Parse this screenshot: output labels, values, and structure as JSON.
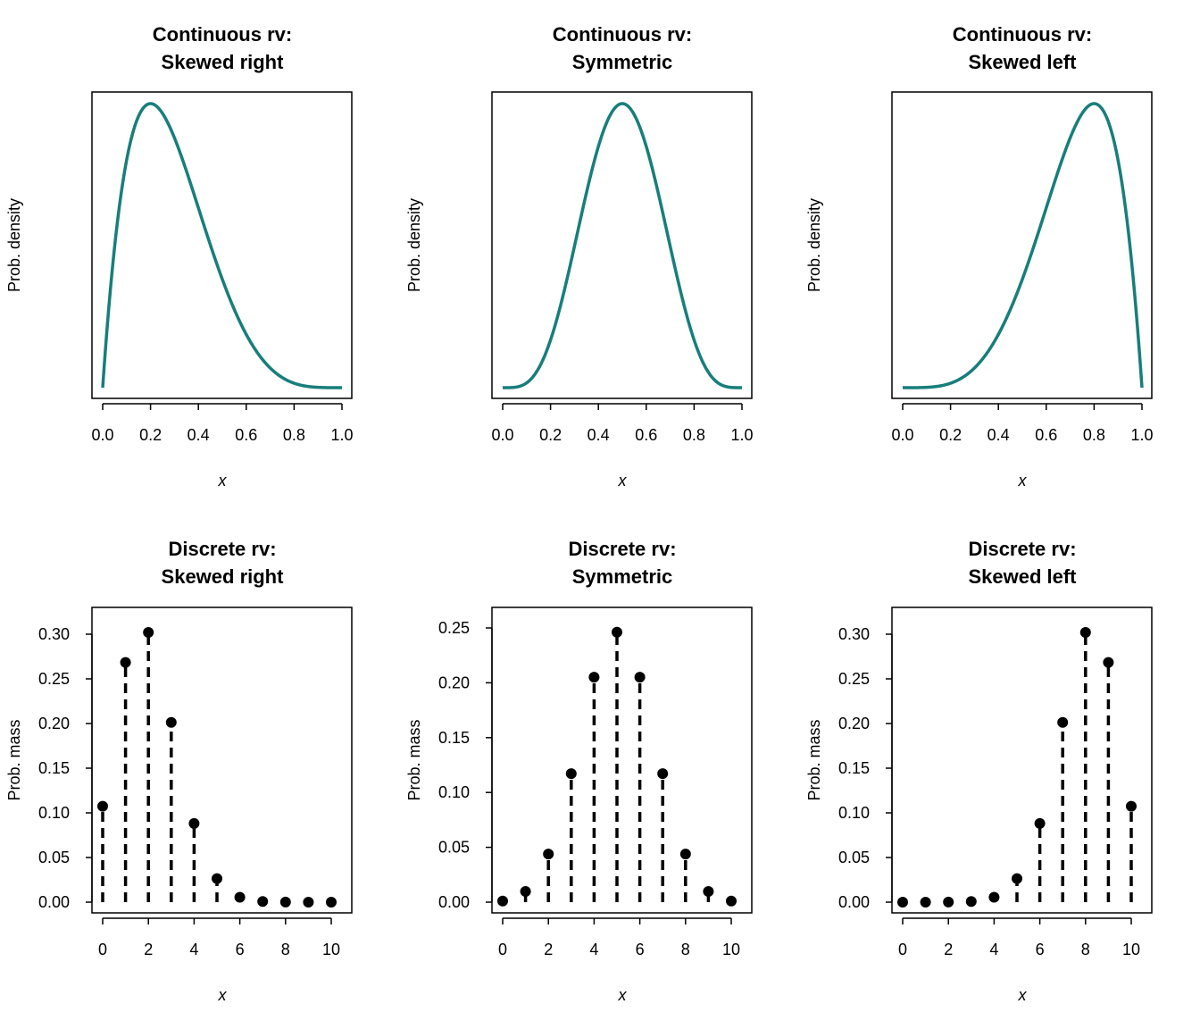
{
  "chart_data": {
    "type": "multi-panel",
    "layout": "2 rows x 3 columns",
    "curve_color": "#177e7b",
    "panels": [
      {
        "type": "line",
        "title": [
          "Continuous rv:",
          "Skewed right"
        ],
        "xlabel": "x",
        "ylabel": "Prob. density",
        "xlim": [
          0,
          1
        ],
        "xticks": [
          "0.0",
          "0.2",
          "0.4",
          "0.6",
          "0.8",
          "1.0"
        ],
        "yticks": [],
        "distribution": {
          "family": "beta",
          "shape1": 2,
          "shape2": 5
        }
      },
      {
        "type": "line",
        "title": [
          "Continuous rv:",
          "Symmetric"
        ],
        "xlabel": "x",
        "ylabel": "Prob. density",
        "xlim": [
          0,
          1
        ],
        "xticks": [
          "0.0",
          "0.2",
          "0.4",
          "0.6",
          "0.8",
          "1.0"
        ],
        "yticks": [],
        "distribution": {
          "family": "beta",
          "shape1": 5,
          "shape2": 5
        }
      },
      {
        "type": "line",
        "title": [
          "Continuous rv:",
          "Skewed left"
        ],
        "xlabel": "x",
        "ylabel": "Prob. density",
        "xlim": [
          0,
          1
        ],
        "xticks": [
          "0.0",
          "0.2",
          "0.4",
          "0.6",
          "0.8",
          "1.0"
        ],
        "yticks": [],
        "distribution": {
          "family": "beta",
          "shape1": 5,
          "shape2": 2
        }
      },
      {
        "type": "stem",
        "title": [
          "Discrete rv:",
          "Skewed right"
        ],
        "xlabel": "x",
        "ylabel": "Prob. mass",
        "x": [
          0,
          1,
          2,
          3,
          4,
          5,
          6,
          7,
          8,
          9,
          10
        ],
        "values": [
          0.1074,
          0.2684,
          0.302,
          0.2013,
          0.0881,
          0.0264,
          0.0055,
          0.0008,
          0.0001,
          0.0,
          0.0
        ],
        "xticks": [
          "0",
          "2",
          "4",
          "6",
          "8",
          "10"
        ],
        "yticks": [
          "0.00",
          "0.05",
          "0.10",
          "0.15",
          "0.20",
          "0.25",
          "0.30"
        ],
        "ylim": [
          0,
          0.3
        ]
      },
      {
        "type": "stem",
        "title": [
          "Discrete rv:",
          "Symmetric"
        ],
        "xlabel": "x",
        "ylabel": "Prob. mass",
        "x": [
          0,
          1,
          2,
          3,
          4,
          5,
          6,
          7,
          8,
          9,
          10
        ],
        "values": [
          0.001,
          0.0098,
          0.0439,
          0.1172,
          0.2051,
          0.2461,
          0.2051,
          0.1172,
          0.0439,
          0.0098,
          0.001
        ],
        "xticks": [
          "0",
          "2",
          "4",
          "6",
          "8",
          "10"
        ],
        "yticks": [
          "0.00",
          "0.05",
          "0.10",
          "0.15",
          "0.20",
          "0.25"
        ],
        "ylim": [
          0,
          0.25
        ]
      },
      {
        "type": "stem",
        "title": [
          "Discrete rv:",
          "Skewed left"
        ],
        "xlabel": "x",
        "ylabel": "Prob. mass",
        "x": [
          0,
          1,
          2,
          3,
          4,
          5,
          6,
          7,
          8,
          9,
          10
        ],
        "values": [
          0.0,
          0.0,
          0.0001,
          0.0008,
          0.0055,
          0.0264,
          0.0881,
          0.2013,
          0.302,
          0.2684,
          0.1074
        ],
        "xticks": [
          "0",
          "2",
          "4",
          "6",
          "8",
          "10"
        ],
        "yticks": [
          "0.00",
          "0.05",
          "0.10",
          "0.15",
          "0.20",
          "0.25",
          "0.30"
        ],
        "ylim": [
          0,
          0.3
        ]
      }
    ]
  }
}
